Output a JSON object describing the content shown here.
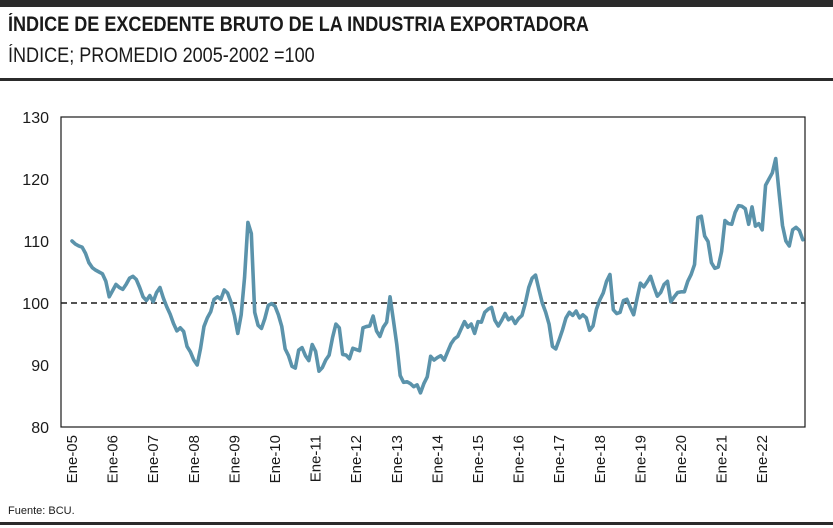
{
  "header": {
    "title": "ÍNDICE DE EXCEDENTE BRUTO DE LA INDUSTRIA EXPORTADORA",
    "subtitle": "ÍNDICE; PROMEDIO 2005-2002 =100"
  },
  "footer": {
    "source": "Fuente: BCU."
  },
  "colors": {
    "line": "#5b93ab",
    "reference": "#1a1a1a",
    "rules": "#2b2b2b"
  },
  "chart_data": {
    "type": "line",
    "title": "ÍNDICE DE EXCEDENTE BRUTO DE LA INDUSTRIA EXPORTADORA",
    "subtitle": "ÍNDICE; PROMEDIO 2005-2002 =100",
    "xlabel": "",
    "ylabel": "",
    "ylim": [
      80,
      130
    ],
    "yticks": [
      80,
      90,
      100,
      110,
      120,
      130
    ],
    "x_start": "Ene-05",
    "x_tick_labels": [
      "Ene-05",
      "Ene-06",
      "Ene-07",
      "Ene-08",
      "Ene-09",
      "Ene-10",
      "Ene-11",
      "Ene-12",
      "Ene-13",
      "Ene-14",
      "Ene-15",
      "Ene-16",
      "Ene-17",
      "Ene-18",
      "Ene-19",
      "Ene-20",
      "Ene-21",
      "Ene-22"
    ],
    "reference_line": {
      "y": 100,
      "style": "dashed"
    },
    "grid": false,
    "legend": "none",
    "series": [
      {
        "values": [
          110,
          109.5,
          109.2,
          109,
          108,
          106.5,
          105.7,
          105.3,
          105,
          104.7,
          103.5,
          101,
          102,
          103,
          102.5,
          102.2,
          103,
          104,
          104.3,
          103.8,
          102.5,
          101,
          100.4,
          101.2,
          100.2,
          101.7,
          102.5,
          100.8,
          99.4,
          98.2,
          96.7,
          95.5,
          96,
          95.4,
          93,
          92.1,
          90.8,
          90,
          92.7,
          96.2,
          97.6,
          98.6,
          100.6,
          101,
          100.6,
          102.1,
          101.6,
          100.1,
          98,
          95.1,
          98.1,
          104.1,
          113,
          111.2,
          98.5,
          96.4,
          95.9,
          97.5,
          99.6,
          99.9,
          99.5,
          98.1,
          96.2,
          92.6,
          91.5,
          89.8,
          89.5,
          92.4,
          92.8,
          91.5,
          90.7,
          93.3,
          92.2,
          89,
          89.6,
          90.8,
          91.6,
          94.4,
          96.6,
          96,
          91.7,
          91.6,
          91,
          92.7,
          92.5,
          92.3,
          96,
          96.2,
          96.3,
          97.9,
          95.5,
          94.6,
          96.1,
          96.9,
          101,
          97.2,
          93.3,
          88.3,
          87.2,
          87.3,
          87,
          86.5,
          86.8,
          85.5,
          87,
          88.1,
          91.4,
          90.8,
          91.2,
          91.5,
          90.8,
          92.1,
          93.4,
          94.2,
          94.6,
          95.8,
          97,
          96.1,
          96.6,
          95.1,
          97,
          96.9,
          98.5,
          99,
          99.3,
          97.2,
          96.3,
          97.2,
          98.3,
          97.3,
          97.7,
          96.7,
          97.5,
          98,
          100,
          102.5,
          104,
          104.5,
          102.2,
          100,
          98.5,
          96.6,
          93,
          92.6,
          94.1,
          95.7,
          97.6,
          98.5,
          98,
          98.7,
          97.6,
          98.1,
          97.6,
          95.6,
          96.3,
          99,
          100.5,
          101.6,
          103.5,
          104.6,
          98.9,
          98.3,
          98.5,
          100.4,
          100.6,
          99.3,
          98.1,
          100.7,
          103.2,
          102.6,
          103.4,
          104.3,
          102.6,
          101.1,
          101.7,
          103,
          103.5,
          100.2,
          101,
          101.7,
          101.8,
          101.8,
          103.5,
          104.6,
          106.2,
          113.8,
          114,
          110.8,
          109.9,
          106.5,
          105.6,
          105.8,
          108.3,
          113.3,
          112.8,
          112.7,
          114.6,
          115.7,
          115.6,
          115.2,
          112.7,
          115.5,
          112.4,
          112.8,
          111.8,
          119,
          120,
          121,
          123.3,
          117.7,
          112.5,
          110,
          109.2,
          111.8,
          112.2,
          111.7,
          110.2
        ]
      }
    ]
  }
}
